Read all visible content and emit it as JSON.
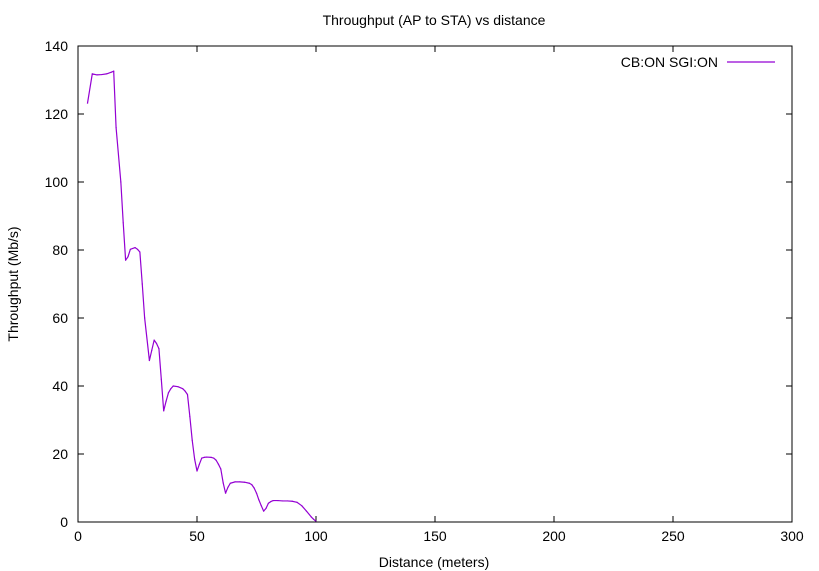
{
  "chart_data": {
    "type": "line",
    "title": "Throughput (AP to STA) vs distance",
    "xlabel": "Distance (meters)",
    "ylabel": "Throughput (Mb/s)",
    "xlim": [
      0,
      300
    ],
    "ylim": [
      0,
      140
    ],
    "xticks": [
      0,
      50,
      100,
      150,
      200,
      250,
      300
    ],
    "yticks": [
      0,
      20,
      40,
      60,
      80,
      100,
      120,
      140
    ],
    "grid": false,
    "legend_position": "top-right",
    "series": [
      {
        "name": "CB:ON SGI:ON",
        "color": "#9400d3",
        "x": [
          4,
          6,
          8,
          10,
          12,
          14,
          15,
          16,
          18,
          19,
          20,
          21,
          22,
          24,
          25,
          26,
          27,
          28,
          30,
          31,
          32,
          33,
          34,
          35,
          36,
          37,
          38,
          39,
          40,
          42,
          44,
          45,
          46,
          47,
          48,
          49,
          50,
          51,
          52,
          53,
          54,
          56,
          57,
          58,
          59,
          60,
          61,
          62,
          63,
          64,
          66,
          68,
          70,
          72,
          73,
          74,
          75,
          76,
          77,
          78,
          79,
          80,
          81,
          82,
          84,
          86,
          88,
          90,
          92,
          94,
          96,
          98,
          99,
          100
        ],
        "y": [
          123.2,
          131.8,
          131.5,
          131.6,
          131.8,
          132.3,
          132.6,
          116.0,
          100.0,
          88.0,
          77.0,
          78.0,
          80.2,
          80.7,
          80.2,
          79.4,
          70.0,
          60.0,
          47.5,
          50.5,
          53.5,
          52.5,
          51.0,
          42.0,
          32.7,
          35.5,
          38.0,
          39.2,
          40.0,
          39.8,
          39.2,
          38.5,
          37.5,
          31.0,
          24.0,
          18.5,
          15.0,
          17.0,
          18.8,
          19.0,
          19.1,
          19.0,
          18.8,
          18.2,
          17.0,
          15.6,
          11.5,
          8.5,
          10.2,
          11.4,
          11.8,
          11.8,
          11.7,
          11.4,
          11.0,
          10.0,
          8.5,
          6.5,
          4.8,
          3.2,
          4.0,
          5.5,
          6.0,
          6.3,
          6.3,
          6.2,
          6.2,
          6.1,
          5.8,
          4.8,
          3.2,
          1.5,
          0.8,
          0.2
        ]
      }
    ]
  }
}
